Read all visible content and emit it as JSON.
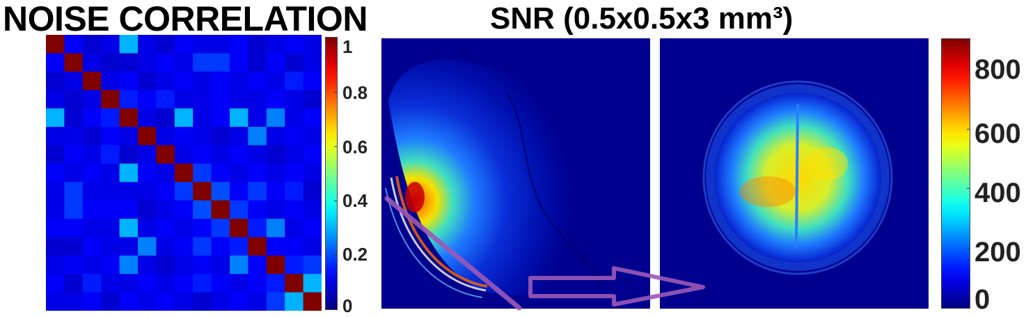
{
  "titles": {
    "noise": "NOISE CORRELATION",
    "snr": "SNR (0.5x0.5x3 mm³)"
  },
  "colorbar_small": {
    "ticks": [
      "1",
      "0.8",
      "0.6",
      "0.4",
      "0.2",
      "0"
    ]
  },
  "colorbar_large": {
    "ticks": [
      "800",
      "600",
      "400",
      "200",
      "0"
    ]
  },
  "colors": {
    "jet_dark_blue": "#00008f",
    "jet_red": "#8b0000",
    "arrow_purple": "#9b59b6"
  },
  "chart_data": {
    "type": "heatmap",
    "title": "NOISE CORRELATION",
    "size": 15,
    "values": [
      [
        1.0,
        0.12,
        0.08,
        0.1,
        0.3,
        0.1,
        0.08,
        0.12,
        0.1,
        0.1,
        0.12,
        0.08,
        0.1,
        0.12,
        0.1
      ],
      [
        0.12,
        1.0,
        0.1,
        0.08,
        0.08,
        0.1,
        0.12,
        0.1,
        0.18,
        0.18,
        0.12,
        0.08,
        0.12,
        0.08,
        0.1
      ],
      [
        0.08,
        0.1,
        1.0,
        0.1,
        0.12,
        0.08,
        0.1,
        0.12,
        0.1,
        0.12,
        0.1,
        0.12,
        0.1,
        0.15,
        0.12
      ],
      [
        0.1,
        0.08,
        0.1,
        1.0,
        0.15,
        0.12,
        0.15,
        0.1,
        0.1,
        0.12,
        0.1,
        0.1,
        0.12,
        0.1,
        0.08
      ],
      [
        0.3,
        0.08,
        0.12,
        0.15,
        1.0,
        0.1,
        0.08,
        0.3,
        0.1,
        0.12,
        0.3,
        0.1,
        0.25,
        0.1,
        0.12
      ],
      [
        0.1,
        0.1,
        0.08,
        0.12,
        0.1,
        1.0,
        0.1,
        0.12,
        0.1,
        0.08,
        0.1,
        0.25,
        0.1,
        0.12,
        0.1
      ],
      [
        0.08,
        0.12,
        0.1,
        0.15,
        0.08,
        0.1,
        1.0,
        0.1,
        0.12,
        0.1,
        0.12,
        0.1,
        0.08,
        0.1,
        0.12
      ],
      [
        0.12,
        0.1,
        0.12,
        0.1,
        0.3,
        0.12,
        0.1,
        1.0,
        0.18,
        0.12,
        0.1,
        0.12,
        0.1,
        0.12,
        0.1
      ],
      [
        0.1,
        0.18,
        0.1,
        0.1,
        0.1,
        0.1,
        0.12,
        0.18,
        1.0,
        0.2,
        0.12,
        0.18,
        0.12,
        0.15,
        0.08
      ],
      [
        0.1,
        0.18,
        0.12,
        0.12,
        0.12,
        0.08,
        0.1,
        0.12,
        0.2,
        1.0,
        0.18,
        0.12,
        0.1,
        0.12,
        0.1
      ],
      [
        0.12,
        0.12,
        0.1,
        0.1,
        0.3,
        0.1,
        0.12,
        0.1,
        0.12,
        0.18,
        1.0,
        0.15,
        0.25,
        0.1,
        0.12
      ],
      [
        0.08,
        0.08,
        0.12,
        0.1,
        0.1,
        0.25,
        0.1,
        0.12,
        0.18,
        0.12,
        0.15,
        1.0,
        0.12,
        0.12,
        0.1
      ],
      [
        0.1,
        0.12,
        0.1,
        0.12,
        0.25,
        0.1,
        0.08,
        0.1,
        0.12,
        0.1,
        0.25,
        0.12,
        1.0,
        0.15,
        0.18
      ],
      [
        0.12,
        0.08,
        0.15,
        0.1,
        0.1,
        0.12,
        0.1,
        0.12,
        0.15,
        0.12,
        0.1,
        0.12,
        0.15,
        1.0,
        0.3
      ],
      [
        0.1,
        0.1,
        0.12,
        0.08,
        0.12,
        0.1,
        0.12,
        0.1,
        0.08,
        0.1,
        0.12,
        0.1,
        0.18,
        0.3,
        1.0
      ]
    ],
    "colorbar_range": [
      0,
      1
    ],
    "snr_colorbar_range": [
      0,
      900
    ]
  }
}
